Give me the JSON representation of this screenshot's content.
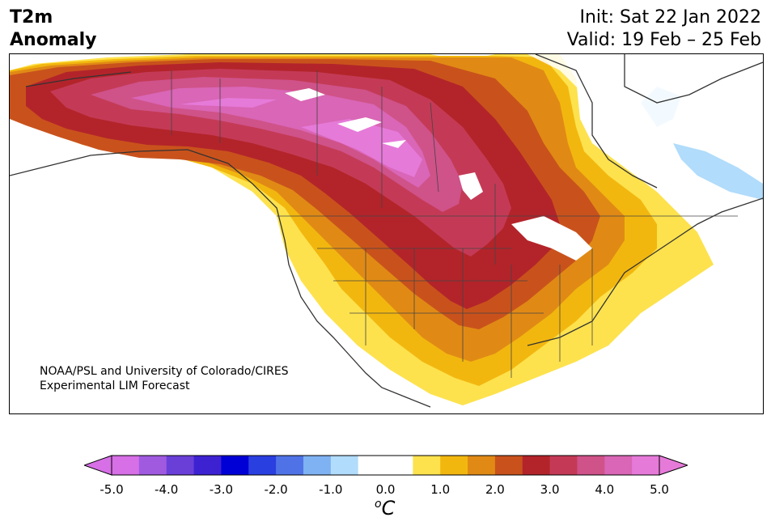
{
  "header": {
    "title_line1": "T2m",
    "title_line2": "Anomaly",
    "init_text": "Init: Sat 22 Jan 2022",
    "valid_text": "Valid: 19 Feb – 25 Feb"
  },
  "map": {
    "credit_line1": "NOAA/PSL and University of Colorado/CIRES",
    "credit_line2": "Experimental LIM Forecast"
  },
  "colorbar": {
    "ticks": [
      "-5.0",
      "-4.0",
      "-3.0",
      "-2.0",
      "-1.0",
      "0.0",
      "1.0",
      "2.0",
      "3.0",
      "4.0",
      "5.0"
    ],
    "unit_o": "o",
    "unit_c": "C",
    "colors": [
      "#d76fe6",
      "#a05ae0",
      "#6a3fd8",
      "#3d22d2",
      "#0000d6",
      "#2a3fe0",
      "#4f73e6",
      "#7eb2f2",
      "#b1dcfb",
      "#ffffff",
      "#ffffff",
      "#fde24d",
      "#f2b70f",
      "#e08a15",
      "#c9521c",
      "#b3242a",
      "#c43a56",
      "#cf5289",
      "#d966b6",
      "#e67ad9"
    ],
    "extend_low_color": "#d76fe6",
    "extend_high_color": "#e67ad9"
  }
}
